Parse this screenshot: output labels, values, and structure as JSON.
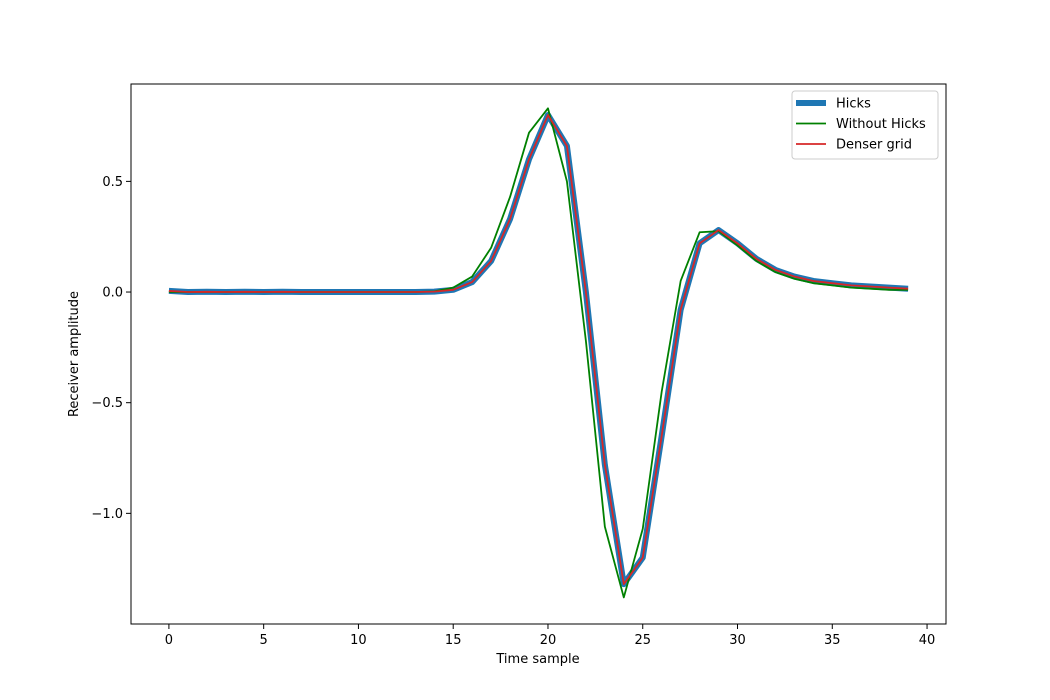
{
  "chart_data": {
    "type": "line",
    "title": "",
    "xlabel": "Time sample",
    "ylabel": "Receiver amplitude",
    "xlim": [
      -2,
      41
    ],
    "ylim": [
      -1.5,
      0.94
    ],
    "xticks": [
      0,
      5,
      10,
      15,
      20,
      25,
      30,
      35,
      40
    ],
    "xtick_labels": [
      "0",
      "5",
      "10",
      "15",
      "20",
      "25",
      "30",
      "35",
      "40"
    ],
    "yticks": [
      -1.0,
      -0.5,
      0.0,
      0.5
    ],
    "ytick_labels": [
      "−1.0",
      "−0.5",
      "0.0",
      "0.5"
    ],
    "grid": false,
    "legend_position": "top-right",
    "x": [
      0,
      1,
      2,
      3,
      4,
      5,
      6,
      7,
      8,
      9,
      10,
      11,
      12,
      13,
      14,
      15,
      16,
      17,
      18,
      19,
      20,
      21,
      22,
      23,
      24,
      25,
      26,
      27,
      28,
      29,
      30,
      31,
      32,
      33,
      34,
      35,
      36,
      37,
      38,
      39
    ],
    "series": [
      {
        "name": "Hicks",
        "color": "#1f77b4",
        "width": 6,
        "values": [
          0.005,
          0.0,
          0.001,
          0.0,
          0.001,
          0.0,
          0.001,
          0.0,
          0.0,
          0.0,
          0.0,
          0.0,
          0.0,
          0.0,
          0.002,
          0.01,
          0.045,
          0.14,
          0.33,
          0.6,
          0.8,
          0.66,
          0.0,
          -0.78,
          -1.32,
          -1.2,
          -0.65,
          -0.08,
          0.22,
          0.28,
          0.22,
          0.15,
          0.1,
          0.07,
          0.05,
          0.04,
          0.03,
          0.025,
          0.02,
          0.015
        ]
      },
      {
        "name": "Without Hicks",
        "color": "#008000",
        "width": 1.8,
        "values": [
          0.0,
          0.0,
          0.0,
          0.0,
          0.0,
          0.0,
          0.0,
          0.0,
          0.0,
          0.0,
          0.0,
          0.0,
          0.0,
          0.0,
          0.003,
          0.02,
          0.07,
          0.2,
          0.43,
          0.72,
          0.83,
          0.5,
          -0.22,
          -1.06,
          -1.38,
          -1.07,
          -0.45,
          0.05,
          0.27,
          0.275,
          0.21,
          0.14,
          0.09,
          0.06,
          0.04,
          0.03,
          0.02,
          0.015,
          0.01,
          0.01
        ]
      },
      {
        "name": "Denser grid",
        "color": "#d62728",
        "width": 1.8,
        "values": [
          0.005,
          0.0,
          0.001,
          0.0,
          0.001,
          0.0,
          0.001,
          0.0,
          0.0,
          0.0,
          0.0,
          0.0,
          0.0,
          0.0,
          0.002,
          0.01,
          0.045,
          0.14,
          0.33,
          0.6,
          0.8,
          0.66,
          0.0,
          -0.78,
          -1.32,
          -1.2,
          -0.65,
          -0.08,
          0.22,
          0.28,
          0.22,
          0.15,
          0.1,
          0.07,
          0.05,
          0.04,
          0.03,
          0.025,
          0.02,
          0.015
        ]
      }
    ]
  }
}
